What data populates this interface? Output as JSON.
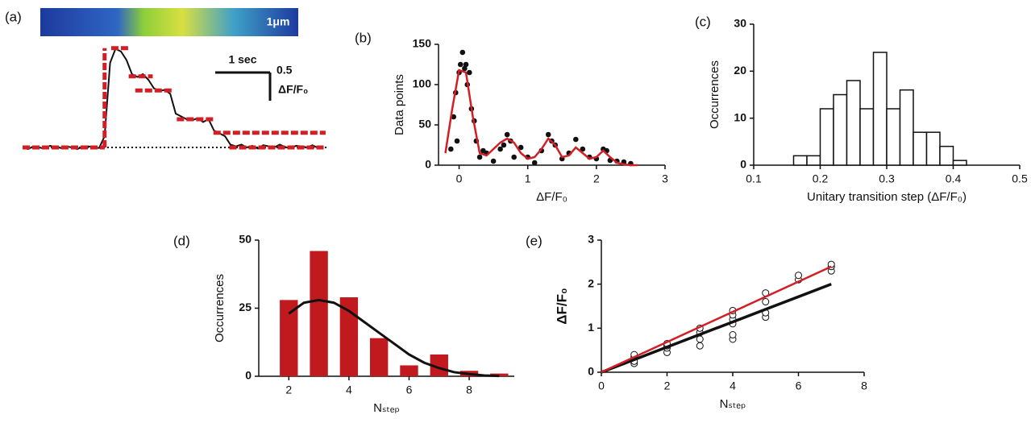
{
  "chart_data": [
    {
      "type": "line",
      "label": "(a)",
      "annotations": [
        "1μm",
        "1 sec",
        "0.5",
        "ΔF/F₀"
      ],
      "xlim": [
        0,
        5.6
      ],
      "ylim": [
        -0.2,
        1.9
      ],
      "zero_line": true,
      "series": [
        {
          "type": "line",
          "color": "#111111",
          "width": 2,
          "x": [
            0,
            0.1,
            0.2,
            0.3,
            0.4,
            0.5,
            0.6,
            0.7,
            0.8,
            0.9,
            1.0,
            1.1,
            1.2,
            1.3,
            1.4,
            1.5,
            1.6,
            1.7,
            1.8,
            1.9,
            2.0,
            2.1,
            2.2,
            2.3,
            2.4,
            2.5,
            2.6,
            2.7,
            2.8,
            2.9,
            3.0,
            3.1,
            3.2,
            3.3,
            3.4,
            3.5,
            3.6,
            3.7,
            3.8,
            3.9,
            4.0,
            4.1,
            4.2,
            4.3,
            4.4,
            4.5,
            4.6,
            4.7,
            4.8,
            4.9,
            5.0,
            5.1,
            5.2,
            5.3,
            5.4,
            5.5
          ],
          "values": [
            0,
            -0.03,
            0.02,
            0,
            -0.02,
            0.03,
            0.01,
            -0.01,
            0.02,
            0,
            -0.03,
            0.01,
            0.02,
            0,
            -0.01,
            0.2,
            1.5,
            1.75,
            1.7,
            1.55,
            1.3,
            1.25,
            1.3,
            1.2,
            1.05,
            1.0,
            1.02,
            0.95,
            0.6,
            0.55,
            0.5,
            0.48,
            0.52,
            0.45,
            0.5,
            0.3,
            0.25,
            0.2,
            0.05,
            0.02,
            0.05,
            0,
            0.03,
            -0.02,
            0.04,
            0.02,
            0,
            0.05,
            0.01,
            -0.02,
            0.03,
            0.02,
            0,
            0.04,
            -0.01,
            0.02
          ]
        },
        {
          "type": "line",
          "color": "#d21f26",
          "width": 5,
          "dashed": true,
          "x": [
            0,
            1.5,
            null,
            1.5,
            1.5,
            null,
            1.62,
            1.94,
            null,
            1.94,
            2.38,
            null,
            2.06,
            2.75,
            null,
            2.82,
            3.49,
            null,
            3.49,
            5.54,
            null,
            3.78,
            5.54
          ],
          "values": [
            0,
            0,
            null,
            0,
            1.76,
            null,
            1.76,
            1.76,
            null,
            1.26,
            1.26,
            null,
            1.01,
            1.01,
            null,
            0.5,
            0.5,
            null,
            0.26,
            0.26,
            null,
            0,
            0
          ]
        }
      ]
    },
    {
      "type": "scatter",
      "label": "(b)",
      "xlabel": "ΔF/F₀",
      "ylabel": "Data points",
      "xlim": [
        -0.3,
        3
      ],
      "ylim": [
        0,
        150
      ],
      "xticks": [
        0,
        1,
        2,
        3
      ],
      "yticks": [
        0,
        50,
        100,
        150
      ],
      "series": [
        {
          "type": "scatter",
          "color": "#111111",
          "x": [
            -0.12,
            -0.08,
            -0.05,
            -0.03,
            0,
            0.02,
            0.05,
            0.08,
            0.1,
            0.12,
            0.15,
            0.18,
            0.22,
            0.25,
            0.3,
            0.35,
            0.4,
            0.5,
            0.6,
            0.65,
            0.7,
            0.75,
            0.8,
            0.9,
            1.0,
            1.1,
            1.2,
            1.3,
            1.35,
            1.4,
            1.5,
            1.6,
            1.7,
            1.8,
            1.9,
            2.0,
            2.1,
            2.15,
            2.2,
            2.3,
            2.4,
            2.5
          ],
          "values": [
            20,
            60,
            90,
            30,
            115,
            125,
            140,
            120,
            125,
            100,
            115,
            70,
            55,
            30,
            10,
            18,
            15,
            5,
            20,
            25,
            38,
            30,
            10,
            22,
            10,
            3,
            18,
            38,
            30,
            25,
            8,
            15,
            32,
            20,
            10,
            8,
            20,
            18,
            6,
            5,
            4,
            2
          ]
        },
        {
          "type": "line",
          "color": "#d21f26",
          "width": 2.5,
          "x": [
            -0.2,
            -0.1,
            0,
            0.1,
            0.2,
            0.3,
            0.4,
            0.5,
            0.6,
            0.7,
            0.8,
            0.9,
            1.0,
            1.1,
            1.2,
            1.3,
            1.4,
            1.5,
            1.6,
            1.7,
            1.8,
            1.9,
            2.0,
            2.1,
            2.2,
            2.3,
            2.4,
            2.5,
            2.6
          ],
          "values": [
            15,
            70,
            118,
            115,
            60,
            15,
            12,
            20,
            28,
            33,
            28,
            15,
            8,
            10,
            20,
            33,
            25,
            10,
            12,
            22,
            15,
            8,
            10,
            18,
            10,
            3,
            1,
            0,
            0
          ]
        }
      ]
    },
    {
      "type": "histogram",
      "label": "(c)",
      "xlabel": "Unitary transition step (ΔF/F₀)",
      "ylabel": "Occurrences",
      "xlim": [
        0.1,
        0.5
      ],
      "ylim": [
        0,
        30
      ],
      "xticks": [
        0.1,
        0.2,
        0.3,
        0.4,
        0.5
      ],
      "yticks": [
        0,
        10,
        20,
        30
      ],
      "bins": [
        0.16,
        0.18,
        0.2,
        0.22,
        0.24,
        0.26,
        0.28,
        0.3,
        0.32,
        0.34,
        0.36,
        0.38,
        0.4,
        0.42
      ],
      "values": [
        2,
        2,
        12,
        15,
        18,
        12,
        24,
        12,
        16,
        7,
        7,
        4,
        1
      ],
      "color": "#ffffff",
      "series": []
    },
    {
      "type": "bar",
      "label": "(d)",
      "xlabel": "Nₛₜₑₚ",
      "ylabel": "Occurrences",
      "xlim": [
        1,
        9.5
      ],
      "ylim": [
        0,
        50
      ],
      "xticks": [
        2,
        4,
        6,
        8
      ],
      "yticks": [
        0,
        25,
        50
      ],
      "series": [
        {
          "type": "bar",
          "color": "#c0191e",
          "x": [
            2,
            3,
            4,
            5,
            6,
            7,
            8,
            9
          ],
          "values": [
            28,
            46,
            29,
            14,
            4,
            8,
            2,
            1
          ]
        },
        {
          "type": "line",
          "color": "#111111",
          "width": 3,
          "x": [
            2,
            2.5,
            3,
            3.5,
            4,
            4.5,
            5,
            5.5,
            6,
            6.5,
            7,
            7.5,
            8,
            8.5,
            9
          ],
          "values": [
            23,
            27,
            28,
            27,
            24,
            20,
            16,
            12,
            8,
            5,
            3,
            1.5,
            0.8,
            0.3,
            0.1
          ]
        }
      ]
    },
    {
      "type": "scatter",
      "label": "(e)",
      "xlabel": "Nₛₜₑₚ",
      "ylabel": "ΔF/F₀",
      "xlim": [
        0,
        8
      ],
      "ylim": [
        0,
        3
      ],
      "xticks": [
        0,
        2,
        4,
        6,
        8
      ],
      "yticks": [
        0,
        1,
        2,
        3
      ],
      "series": [
        {
          "type": "scatter",
          "color": "#111111",
          "open": true,
          "x": [
            1,
            1,
            1,
            1,
            2,
            2,
            2,
            2,
            3,
            3,
            3,
            3,
            4,
            4,
            4,
            4,
            4,
            4,
            5,
            5,
            5,
            5,
            6,
            6,
            7,
            7,
            7
          ],
          "values": [
            0.2,
            0.25,
            0.35,
            0.4,
            0.45,
            0.55,
            0.6,
            0.65,
            0.6,
            0.75,
            0.9,
            1.0,
            0.75,
            0.85,
            1.1,
            1.2,
            1.3,
            1.4,
            1.25,
            1.35,
            1.6,
            1.8,
            2.1,
            2.2,
            2.3,
            2.4,
            2.45
          ]
        },
        {
          "type": "line",
          "color": "#111111",
          "width": 3.5,
          "x": [
            0,
            7
          ],
          "values": [
            0,
            2
          ]
        },
        {
          "type": "line",
          "color": "#d21f26",
          "width": 2.5,
          "x": [
            0,
            7
          ],
          "values": [
            0,
            2.4
          ]
        }
      ]
    }
  ]
}
